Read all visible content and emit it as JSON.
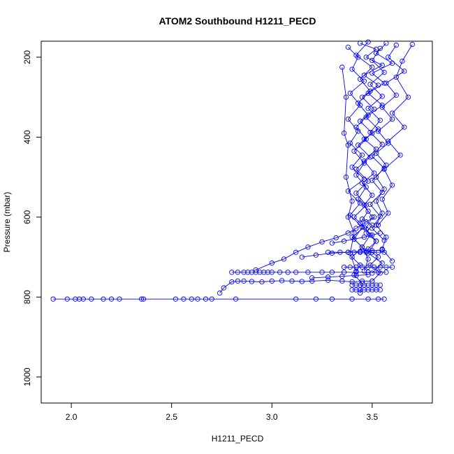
{
  "chart_data": {
    "type": "scatter",
    "title": "ATOM2 Southbound H1211_PECD",
    "xlabel": "H1211_PECD",
    "ylabel": "Pressure (mbar)",
    "xlim": [
      1.85,
      3.8
    ],
    "ylim": [
      1065,
      160
    ],
    "y_axis_inverted": true,
    "x_ticks": [
      2.0,
      2.5,
      3.0,
      3.5
    ],
    "x_tick_labels": [
      "2.0",
      "2.5",
      "3.0",
      "3.5"
    ],
    "y_ticks": [
      200,
      400,
      600,
      800,
      1000
    ],
    "y_tick_labels": [
      "200",
      "400",
      "600",
      "800",
      "1000"
    ],
    "grid": false,
    "legend": "none",
    "marker": "open-circle",
    "line": "connected",
    "series_color": "#0000ff",
    "series": [
      {
        "x": [
          1.91,
          1.98,
          2.02,
          2.04,
          2.06,
          2.1,
          2.16,
          2.2,
          2.24,
          2.35,
          2.36,
          2.52,
          2.56,
          2.6,
          2.63,
          2.67,
          2.7,
          2.82,
          3.12,
          3.22,
          3.3,
          3.4,
          3.48,
          3.53,
          3.56
        ],
        "y": [
          805,
          805,
          805,
          805,
          805,
          805,
          805,
          805,
          805,
          805,
          805,
          805,
          805,
          805,
          805,
          805,
          805,
          805,
          805,
          805,
          805,
          805,
          805,
          805,
          805
        ]
      },
      {
        "x": [
          2.74,
          2.76,
          2.8,
          2.83,
          2.86,
          2.9,
          2.95,
          3.0,
          3.05,
          3.1,
          3.15,
          3.2,
          3.28,
          3.35,
          3.4,
          3.45,
          3.5
        ],
        "y": [
          790,
          777,
          762,
          760,
          760,
          761,
          762,
          760,
          759,
          760,
          761,
          760,
          758,
          760,
          762,
          760,
          760
        ]
      },
      {
        "x": [
          2.8,
          2.83,
          2.86,
          2.88,
          2.9,
          2.92,
          2.94,
          2.96,
          2.98,
          3.0,
          3.04,
          3.08,
          3.12,
          3.18,
          3.25,
          3.3,
          3.36,
          3.42,
          3.48,
          3.53,
          3.57
        ],
        "y": [
          738,
          738,
          738,
          738,
          738,
          738,
          738,
          738,
          738,
          738,
          738,
          738,
          738,
          738,
          738,
          738,
          738,
          738,
          738,
          738,
          738
        ]
      },
      {
        "x": [
          2.92,
          3.0,
          3.06,
          3.12,
          3.18,
          3.25,
          3.32,
          3.38,
          3.42,
          3.47,
          3.51
        ],
        "y": [
          732,
          715,
          705,
          688,
          675,
          662,
          652,
          640,
          628,
          612,
          600
        ]
      },
      {
        "x": [
          3.28,
          3.34,
          3.38,
          3.41,
          3.44,
          3.47,
          3.5,
          3.53,
          3.56
        ],
        "y": [
          688,
          688,
          688,
          688,
          688,
          688,
          688,
          688,
          688
        ]
      },
      {
        "x": [
          3.36,
          3.39,
          3.42,
          3.45,
          3.48,
          3.51,
          3.54,
          3.57,
          3.6
        ],
        "y": [
          725,
          725,
          725,
          725,
          725,
          725,
          725,
          725,
          725
        ]
      },
      {
        "x": [
          3.4,
          3.42,
          3.44,
          3.46,
          3.48,
          3.5,
          3.52,
          3.54
        ],
        "y": [
          782,
          782,
          782,
          782,
          782,
          782,
          782,
          782
        ]
      },
      {
        "x": [
          3.4,
          3.42,
          3.44,
          3.46,
          3.48,
          3.5,
          3.52,
          3.54
        ],
        "y": [
          770,
          770,
          770,
          770,
          770,
          770,
          770,
          770
        ]
      },
      {
        "x": [
          3.44,
          3.52,
          3.47,
          3.55,
          3.46,
          3.53,
          3.45,
          3.51,
          3.44,
          3.5,
          3.43,
          3.49,
          3.42,
          3.48,
          3.42,
          3.47,
          3.41,
          3.46,
          3.4,
          3.45,
          3.4,
          3.44,
          3.41,
          3.45,
          3.44
        ],
        "y": [
          165,
          180,
          200,
          220,
          245,
          270,
          300,
          330,
          360,
          390,
          420,
          450,
          480,
          510,
          540,
          570,
          600,
          625,
          650,
          675,
          700,
          720,
          745,
          765,
          790
        ]
      },
      {
        "x": [
          3.57,
          3.52,
          3.6,
          3.5,
          3.56,
          3.48,
          3.55,
          3.47,
          3.53,
          3.46,
          3.52,
          3.46,
          3.51,
          3.45,
          3.5,
          3.46,
          3.5,
          3.47,
          3.52,
          3.48,
          3.55,
          3.5
        ],
        "y": [
          165,
          190,
          215,
          240,
          265,
          290,
          320,
          350,
          380,
          405,
          430,
          460,
          490,
          515,
          545,
          570,
          600,
          630,
          660,
          690,
          715,
          740
        ]
      },
      {
        "x": [
          3.38,
          3.43,
          3.4,
          3.46,
          3.39,
          3.44,
          3.38,
          3.43,
          3.39,
          3.45,
          3.4,
          3.46,
          3.38,
          3.44,
          3.39,
          3.45,
          3.41,
          3.47
        ],
        "y": [
          175,
          200,
          230,
          260,
          290,
          320,
          355,
          385,
          415,
          445,
          475,
          505,
          535,
          565,
          595,
          625,
          655,
          685
        ]
      },
      {
        "x": [
          3.62,
          3.58,
          3.66,
          3.57,
          3.62,
          3.55,
          3.6,
          3.53,
          3.58,
          3.52,
          3.57,
          3.52,
          3.56,
          3.52,
          3.55,
          3.52,
          3.57,
          3.55,
          3.6
        ],
        "y": [
          170,
          200,
          235,
          265,
          295,
          325,
          355,
          385,
          415,
          440,
          470,
          500,
          530,
          560,
          590,
          620,
          650,
          680,
          710
        ]
      },
      {
        "x": [
          3.7,
          3.65,
          3.62,
          3.68,
          3.6,
          3.66,
          3.58,
          3.64,
          3.56,
          3.6,
          3.55,
          3.58,
          3.53
        ],
        "y": [
          168,
          210,
          250,
          300,
          340,
          375,
          410,
          445,
          480,
          520,
          555,
          590,
          620
        ]
      },
      {
        "x": [
          3.48,
          3.42,
          3.5,
          3.44,
          3.49,
          3.43,
          3.48,
          3.42,
          3.47,
          3.41,
          3.46,
          3.42,
          3.47,
          3.43,
          3.48,
          3.44,
          3.49,
          3.45,
          3.48,
          3.46
        ],
        "y": [
          162,
          195,
          225,
          255,
          285,
          315,
          345,
          375,
          405,
          435,
          465,
          495,
          525,
          555,
          585,
          615,
          645,
          675,
          705,
          735
        ]
      },
      {
        "x": [
          3.54,
          3.5,
          3.56,
          3.49,
          3.55,
          3.48,
          3.54,
          3.49,
          3.55,
          3.5,
          3.56,
          3.5,
          3.55,
          3.49,
          3.54,
          3.5,
          3.56
        ],
        "y": [
          178,
          208,
          238,
          268,
          298,
          328,
          358,
          388,
          418,
          448,
          478,
          508,
          538,
          568,
          598,
          628,
          658
        ]
      },
      {
        "x": [
          3.35,
          3.37,
          3.36,
          3.38,
          3.37,
          3.4,
          3.38,
          3.41,
          3.39,
          3.42
        ],
        "y": [
          225,
          300,
          390,
          420,
          500,
          560,
          600,
          640,
          690,
          735
        ]
      },
      {
        "x": [
          3.3,
          3.36,
          3.41,
          3.46,
          3.5,
          3.54
        ],
        "y": [
          665,
          660,
          655,
          650,
          645,
          640
        ]
      },
      {
        "x": [
          3.15,
          3.22,
          3.3,
          3.38,
          3.44,
          3.5,
          3.55
        ],
        "y": [
          700,
          695,
          690,
          688,
          686,
          684,
          682
        ]
      },
      {
        "x": [
          3.2,
          3.28,
          3.35,
          3.42,
          3.48
        ],
        "y": [
          752,
          750,
          748,
          746,
          744
        ]
      },
      {
        "x": [
          3.45,
          3.5,
          3.47,
          3.52,
          3.48,
          3.53,
          3.49,
          3.54,
          3.5
        ],
        "y": [
          605,
          620,
          640,
          660,
          680,
          700,
          720,
          740,
          760
        ]
      }
    ]
  }
}
